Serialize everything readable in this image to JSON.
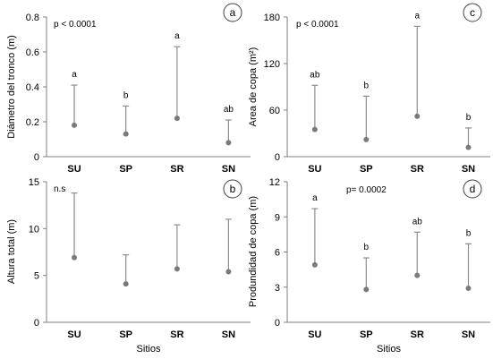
{
  "chart_data": [
    {
      "type": "scatter",
      "panel_label": "a",
      "categories": [
        "SU",
        "SP",
        "SR",
        "SN"
      ],
      "mean": [
        0.18,
        0.13,
        0.22,
        0.08
      ],
      "upper": [
        0.41,
        0.29,
        0.63,
        0.21
      ],
      "significance": [
        "a",
        "b",
        "a",
        "ab"
      ],
      "note": "p < 0.0001",
      "ylabel": "Diámetro del tronco (m)",
      "xlabel": "",
      "ylim": [
        0,
        0.8
      ],
      "yticks": [
        "0",
        "0.2",
        "0.4",
        "0.6",
        "0.8"
      ],
      "ytick_values": [
        0,
        0.2,
        0.4,
        0.6,
        0.8
      ]
    },
    {
      "type": "scatter",
      "panel_label": "c",
      "categories": [
        "SU",
        "SP",
        "SR",
        "SN"
      ],
      "mean": [
        35,
        22,
        52,
        12
      ],
      "upper": [
        92,
        78,
        168,
        37
      ],
      "significance": [
        "ab",
        "b",
        "a",
        "b"
      ],
      "note": "p < 0.0001",
      "ylabel": "Area de copa (m²)",
      "xlabel": "",
      "ylim": [
        0,
        180
      ],
      "yticks": [
        "0",
        "60",
        "120",
        "180"
      ],
      "ytick_values": [
        0,
        60,
        120,
        180
      ]
    },
    {
      "type": "scatter",
      "panel_label": "b",
      "categories": [
        "SU",
        "SP",
        "SR",
        "SN"
      ],
      "mean": [
        6.9,
        4.1,
        5.7,
        5.4
      ],
      "upper": [
        13.8,
        7.2,
        10.4,
        11.0
      ],
      "significance": [
        "",
        "",
        "",
        ""
      ],
      "note": "n.s",
      "ylabel": "Altura total (m)",
      "xlabel": "Sitios",
      "ylim": [
        0,
        15
      ],
      "yticks": [
        "0",
        "5",
        "10",
        "15"
      ],
      "ytick_values": [
        0,
        5,
        10,
        15
      ]
    },
    {
      "type": "scatter",
      "panel_label": "d",
      "categories": [
        "SU",
        "SP",
        "SR",
        "SN"
      ],
      "mean": [
        4.9,
        2.8,
        4.0,
        2.9
      ],
      "upper": [
        9.7,
        5.5,
        7.7,
        6.7
      ],
      "significance": [
        "a",
        "b",
        "ab",
        "b"
      ],
      "note": "p= 0.0002",
      "ylabel": "Produndidad de copa (m)",
      "xlabel": "Sitios",
      "ylim": [
        0,
        12
      ],
      "yticks": [
        "0",
        "3",
        "6",
        "9",
        "12"
      ],
      "ytick_values": [
        0,
        3,
        6,
        9,
        12
      ]
    }
  ],
  "colors": {
    "point": "#7a7a7a",
    "whisker": "#8c8c8c",
    "axis": "#808080"
  }
}
